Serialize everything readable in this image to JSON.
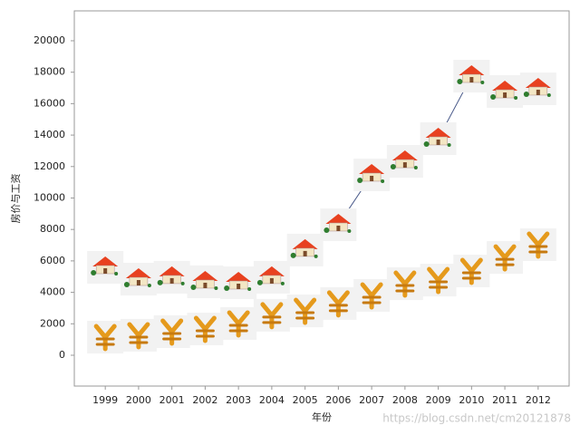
{
  "chart_data": {
    "type": "line",
    "x_label": "年份",
    "y_label": "房价与工资",
    "watermark": "https://blog.csdn.net/cm20121878",
    "categories": [
      "1999",
      "2000",
      "2001",
      "2002",
      "2003",
      "2004",
      "2005",
      "2006",
      "2007",
      "2008",
      "2009",
      "2010",
      "2011",
      "2012"
    ],
    "series": [
      {
        "color": "#4a5a8a",
        "marker": "house",
        "dash": "solid",
        "values": [
          5590,
          4840,
          4960,
          4670,
          4610,
          4960,
          6690,
          8300,
          11470,
          12330,
          13775,
          17750,
          16770,
          16945
        ]
      },
      {
        "color": "#d9442b",
        "marker": "yen",
        "dash": "dotted",
        "values": [
          1150,
          1270,
          1500,
          1670,
          2020,
          2540,
          2820,
          3290,
          3800,
          4550,
          4780,
          5360,
          6220,
          7030
        ]
      }
    ],
    "ylim": [
      -1960,
      21900
    ],
    "yticks": [
      0,
      2000,
      4000,
      6000,
      8000,
      10000,
      12000,
      14000,
      16000,
      18000,
      20000
    ],
    "grid": false
  }
}
